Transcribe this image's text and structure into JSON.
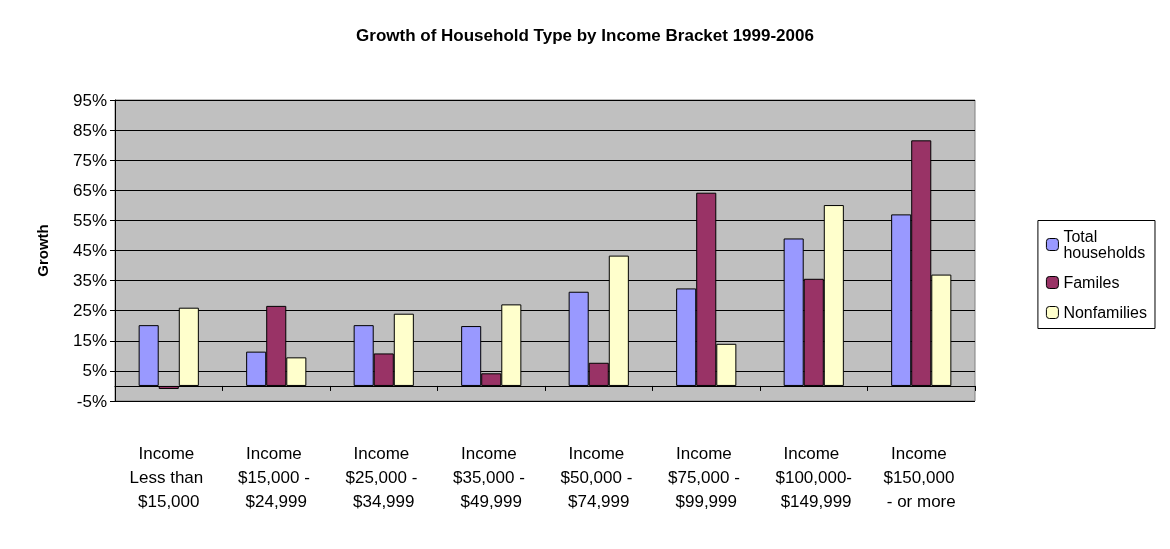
{
  "chart_data": {
    "type": "bar",
    "title": "Growth of Household Type by Income Bracket 1999-2006",
    "ylabel": "Growth",
    "categories": [
      "Income Less than $15,000",
      "Income $15,000 - $24,999",
      "Income $25,000 - $34,999",
      "Income $35,000 - $49,999",
      "Income $50,000 - $74,999",
      "Income $75,000 - $99,999",
      "Income $100,000- $149,999",
      "Income $150,000 - or more"
    ],
    "series": [
      {
        "name": "Total households",
        "color": "#9999ff",
        "values": [
          20.2,
          11.4,
          20.2,
          19.9,
          31.3,
          32.4,
          49,
          57
        ]
      },
      {
        "name": "Familes",
        "color": "#993366",
        "values": [
          -1,
          26.6,
          10.8,
          4.2,
          7.7,
          64.2,
          35.6,
          81.6
        ]
      },
      {
        "name": "Nonfamilies",
        "color": "#ffffcc",
        "values": [
          26,
          9.5,
          24,
          27.1,
          43.3,
          14,
          60.1,
          37
        ]
      }
    ],
    "ylim": [
      -5,
      95
    ],
    "yticks": [
      {
        "value": -5,
        "label": "-5%"
      },
      {
        "value": 5,
        "label": "5%"
      },
      {
        "value": 15,
        "label": "15%"
      },
      {
        "value": 25,
        "label": "25%"
      },
      {
        "value": 35,
        "label": "35%"
      },
      {
        "value": 45,
        "label": "45%"
      },
      {
        "value": 55,
        "label": "55%"
      },
      {
        "value": 65,
        "label": "65%"
      },
      {
        "value": 75,
        "label": "75%"
      },
      {
        "value": 85,
        "label": "85%"
      },
      {
        "value": 95,
        "label": "95%"
      }
    ],
    "grid": "y",
    "legend": "right"
  }
}
